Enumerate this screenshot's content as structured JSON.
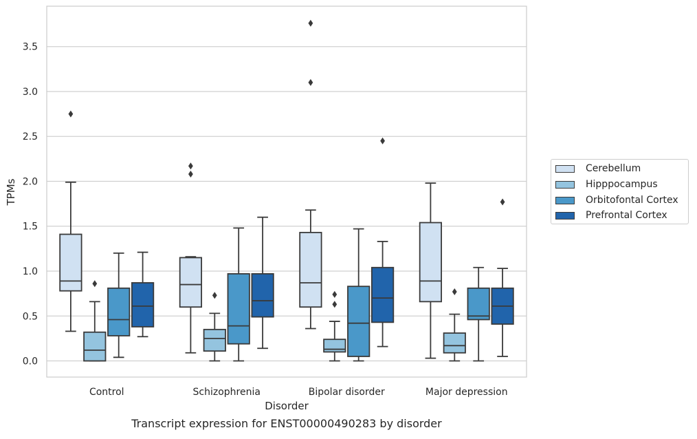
{
  "caption": "Transcript expression for ENST00000490283 by disorder",
  "chart_data": {
    "type": "box",
    "title": "",
    "xlabel": "Disorder",
    "ylabel": "TPMs",
    "ylim": [
      -0.18,
      3.95
    ],
    "yticks": [
      0.0,
      0.5,
      1.0,
      1.5,
      2.0,
      2.5,
      3.0,
      3.5
    ],
    "ytick_labels": [
      "0.0",
      "0.5",
      "1.0",
      "1.5",
      "2.0",
      "2.5",
      "3.0",
      "3.5"
    ],
    "grid": "horizontal",
    "legend_position": "right",
    "categories": [
      "Control",
      "Schizophrenia",
      "Bipolar disorder",
      "Major depression"
    ],
    "series": [
      {
        "name": "Cerebellum",
        "color": "#d0e1f2",
        "boxes": [
          {
            "whislo": 0.33,
            "q1": 0.78,
            "med": 0.89,
            "q3": 1.41,
            "whishi": 1.99,
            "fliers": [
              2.75
            ]
          },
          {
            "whislo": 0.09,
            "q1": 0.6,
            "med": 0.85,
            "q3": 1.15,
            "whishi": 1.16,
            "fliers": [
              2.08,
              2.17
            ]
          },
          {
            "whislo": 0.36,
            "q1": 0.6,
            "med": 0.87,
            "q3": 1.43,
            "whishi": 1.68,
            "fliers": [
              3.1,
              3.76
            ]
          },
          {
            "whislo": 0.03,
            "q1": 0.66,
            "med": 0.89,
            "q3": 1.54,
            "whishi": 1.98,
            "fliers": []
          }
        ]
      },
      {
        "name": "Hipppocampus",
        "color": "#94c4df",
        "boxes": [
          {
            "whislo": 0.0,
            "q1": 0.0,
            "med": 0.12,
            "q3": 0.32,
            "whishi": 0.66,
            "fliers": [
              0.86
            ]
          },
          {
            "whislo": 0.0,
            "q1": 0.11,
            "med": 0.25,
            "q3": 0.35,
            "whishi": 0.53,
            "fliers": [
              0.73
            ]
          },
          {
            "whislo": 0.0,
            "q1": 0.1,
            "med": 0.13,
            "q3": 0.24,
            "whishi": 0.44,
            "fliers": [
              0.63,
              0.74
            ]
          },
          {
            "whislo": 0.0,
            "q1": 0.09,
            "med": 0.17,
            "q3": 0.31,
            "whishi": 0.52,
            "fliers": [
              0.77
            ]
          }
        ]
      },
      {
        "name": "Orbitofontal Cortex",
        "color": "#4a98c9",
        "boxes": [
          {
            "whislo": 0.04,
            "q1": 0.28,
            "med": 0.46,
            "q3": 0.81,
            "whishi": 1.2,
            "fliers": []
          },
          {
            "whislo": 0.0,
            "q1": 0.19,
            "med": 0.39,
            "q3": 0.97,
            "whishi": 1.48,
            "fliers": []
          },
          {
            "whislo": 0.0,
            "q1": 0.05,
            "med": 0.42,
            "q3": 0.83,
            "whishi": 1.47,
            "fliers": []
          },
          {
            "whislo": 0.0,
            "q1": 0.46,
            "med": 0.5,
            "q3": 0.81,
            "whishi": 1.04,
            "fliers": []
          }
        ]
      },
      {
        "name": "Prefrontal Cortex",
        "color": "#2164ab",
        "boxes": [
          {
            "whislo": 0.27,
            "q1": 0.38,
            "med": 0.61,
            "q3": 0.87,
            "whishi": 1.21,
            "fliers": []
          },
          {
            "whislo": 0.14,
            "q1": 0.49,
            "med": 0.67,
            "q3": 0.97,
            "whishi": 1.6,
            "fliers": []
          },
          {
            "whislo": 0.16,
            "q1": 0.43,
            "med": 0.7,
            "q3": 1.04,
            "whishi": 1.33,
            "fliers": [
              2.45
            ]
          },
          {
            "whislo": 0.05,
            "q1": 0.41,
            "med": 0.61,
            "q3": 0.81,
            "whishi": 1.03,
            "fliers": [
              1.77
            ]
          }
        ]
      }
    ]
  }
}
